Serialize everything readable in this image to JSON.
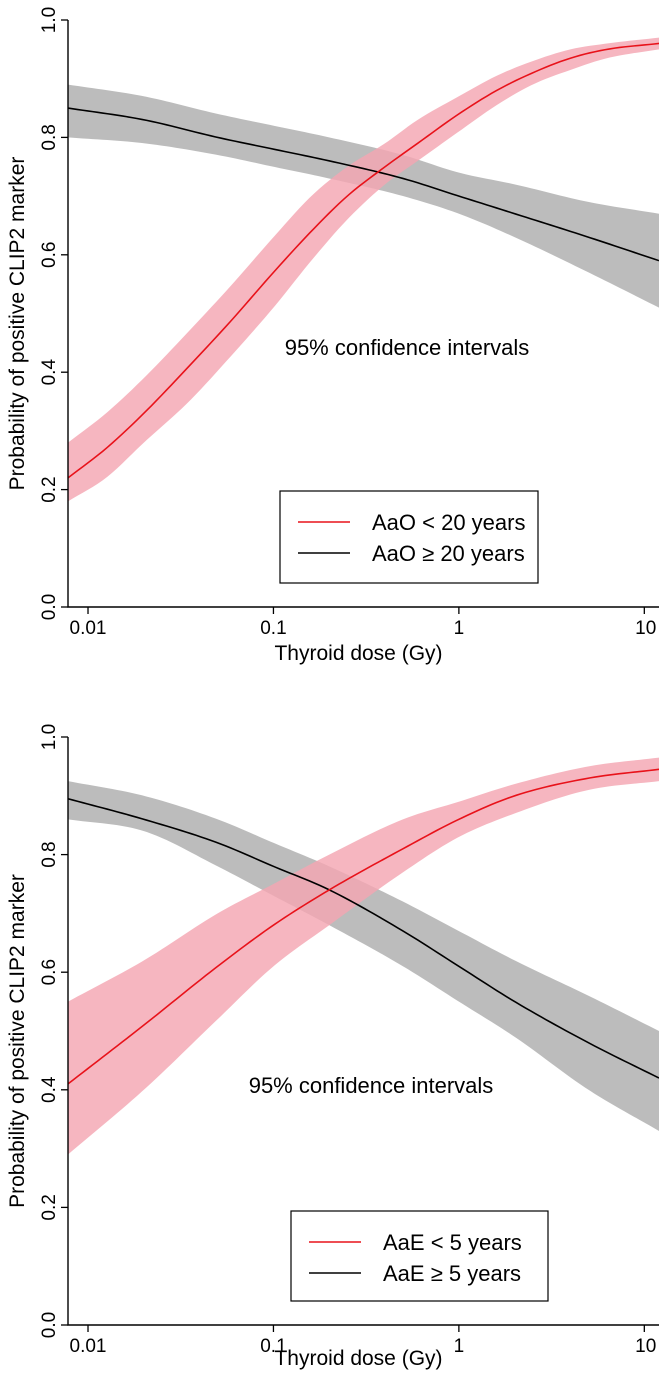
{
  "chart_data": [
    {
      "type": "line",
      "xlabel": "Thyroid dose (Gy)",
      "ylabel": "Probability of positive CLIP2 marker",
      "xscale": "log",
      "xlim": [
        0.0078,
        12
      ],
      "ylim": [
        0.0,
        1.0
      ],
      "xticks": [
        0.01,
        0.1,
        1,
        10
      ],
      "xtick_labels": [
        "0.01",
        "0.1",
        "1",
        "10"
      ],
      "yticks": [
        0.0,
        0.2,
        0.4,
        0.6,
        0.8,
        1.0
      ],
      "ytick_labels": [
        "0.0",
        "0.2",
        "0.4",
        "0.6",
        "0.8",
        "1.0"
      ],
      "annotation": "95% confidence intervals",
      "legend_position": "bottom-right",
      "series": [
        {
          "name": "AaO < 20 years",
          "color": "#e8121a",
          "band_color": "#f4a6b2",
          "x": [
            0.0078,
            0.0125,
            0.02,
            0.035,
            0.06,
            0.1,
            0.16,
            0.25,
            0.4,
            0.6,
            1.0,
            1.6,
            2.5,
            4.0,
            6.3,
            12
          ],
          "y": [
            0.22,
            0.27,
            0.33,
            0.41,
            0.49,
            0.57,
            0.64,
            0.7,
            0.75,
            0.79,
            0.84,
            0.88,
            0.91,
            0.935,
            0.95,
            0.96
          ],
          "lower": [
            0.18,
            0.22,
            0.28,
            0.35,
            0.43,
            0.51,
            0.59,
            0.66,
            0.72,
            0.76,
            0.81,
            0.855,
            0.89,
            0.915,
            0.935,
            0.95
          ],
          "upper": [
            0.28,
            0.33,
            0.39,
            0.47,
            0.55,
            0.63,
            0.7,
            0.75,
            0.79,
            0.83,
            0.87,
            0.905,
            0.93,
            0.95,
            0.96,
            0.97
          ]
        },
        {
          "name": "AaO ≥ 20 years",
          "color": "#000000",
          "band_color": "#b5b5b5",
          "x": [
            0.0078,
            0.02,
            0.05,
            0.1,
            0.2,
            0.5,
            1.0,
            2.0,
            5.0,
            12
          ],
          "y": [
            0.85,
            0.83,
            0.8,
            0.78,
            0.76,
            0.73,
            0.7,
            0.67,
            0.63,
            0.59
          ],
          "lower": [
            0.8,
            0.79,
            0.77,
            0.75,
            0.73,
            0.7,
            0.67,
            0.63,
            0.57,
            0.51
          ],
          "upper": [
            0.89,
            0.87,
            0.84,
            0.82,
            0.8,
            0.77,
            0.74,
            0.72,
            0.69,
            0.67
          ]
        }
      ]
    },
    {
      "type": "line",
      "xlabel": "Thyroid dose (Gy)",
      "ylabel": "Probability of positive CLIP2 marker",
      "xscale": "log",
      "xlim": [
        0.0078,
        12
      ],
      "ylim": [
        0.0,
        1.0
      ],
      "xticks": [
        0.01,
        0.1,
        1,
        10
      ],
      "xtick_labels": [
        "0.01",
        "0.1",
        "1",
        "10"
      ],
      "yticks": [
        0.0,
        0.2,
        0.4,
        0.6,
        0.8,
        1.0
      ],
      "ytick_labels": [
        "0.0",
        "0.2",
        "0.4",
        "0.6",
        "0.8",
        "1.0"
      ],
      "annotation": "95% confidence intervals",
      "legend_position": "bottom-right",
      "series": [
        {
          "name": "AaE < 5 years",
          "color": "#e8121a",
          "band_color": "#f4a6b2",
          "x": [
            0.0078,
            0.02,
            0.05,
            0.1,
            0.2,
            0.5,
            1.0,
            2.0,
            5.0,
            12
          ],
          "y": [
            0.41,
            0.51,
            0.61,
            0.68,
            0.74,
            0.81,
            0.86,
            0.9,
            0.93,
            0.945
          ],
          "lower": [
            0.29,
            0.4,
            0.52,
            0.61,
            0.68,
            0.77,
            0.83,
            0.87,
            0.91,
            0.925
          ],
          "upper": [
            0.55,
            0.62,
            0.7,
            0.75,
            0.8,
            0.86,
            0.89,
            0.92,
            0.95,
            0.965
          ]
        },
        {
          "name": "AaE ≥ 5 years",
          "color": "#000000",
          "band_color": "#b5b5b5",
          "x": [
            0.0078,
            0.02,
            0.05,
            0.1,
            0.2,
            0.5,
            1.0,
            2.0,
            5.0,
            12
          ],
          "y": [
            0.895,
            0.86,
            0.82,
            0.78,
            0.74,
            0.67,
            0.61,
            0.55,
            0.48,
            0.42
          ],
          "lower": [
            0.86,
            0.84,
            0.78,
            0.73,
            0.68,
            0.61,
            0.55,
            0.49,
            0.4,
            0.33
          ],
          "upper": [
            0.925,
            0.9,
            0.86,
            0.82,
            0.78,
            0.72,
            0.67,
            0.62,
            0.56,
            0.5
          ]
        }
      ]
    }
  ]
}
